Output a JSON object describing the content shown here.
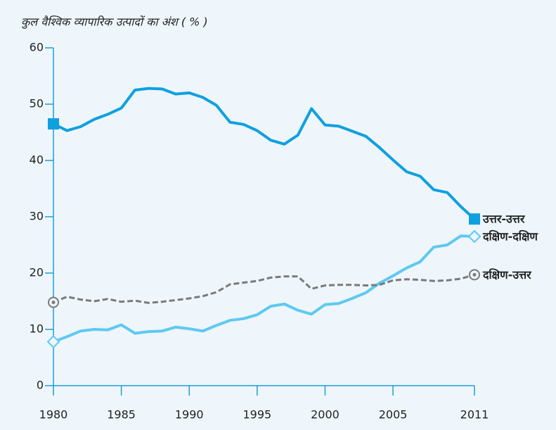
{
  "chart_data": {
    "type": "line",
    "title": "कुल वैश्विक व्यापारिक उत्पादों का अंश ( % )",
    "x": [
      1980,
      1981,
      1982,
      1983,
      1984,
      1985,
      1986,
      1987,
      1988,
      1989,
      1990,
      1991,
      1992,
      1993,
      1994,
      1995,
      1996,
      1997,
      1998,
      1999,
      2000,
      2001,
      2002,
      2003,
      2004,
      2005,
      2006,
      2007,
      2008,
      2009,
      2010,
      2011
    ],
    "series": [
      {
        "name": "उत्तर-उत्तर",
        "color": "#0fa0df",
        "marker": "square",
        "dashed": false,
        "values": [
          46.5,
          45.3,
          46.0,
          47.3,
          48.2,
          49.3,
          52.5,
          52.8,
          52.7,
          51.8,
          52.0,
          51.2,
          49.8,
          46.8,
          46.4,
          45.3,
          43.6,
          42.9,
          44.5,
          49.2,
          46.3,
          46.1,
          45.2,
          44.3,
          42.3,
          40.1,
          38.0,
          37.2,
          34.8,
          34.3,
          31.8,
          29.6
        ]
      },
      {
        "name": "दक्षिण-दक्षिण",
        "color": "#5ec9f2",
        "marker": "diamond",
        "dashed": false,
        "values": [
          7.8,
          8.7,
          9.7,
          10.0,
          9.9,
          10.8,
          9.3,
          9.6,
          9.7,
          10.4,
          10.1,
          9.7,
          10.7,
          11.6,
          11.9,
          12.6,
          14.1,
          14.5,
          13.4,
          12.7,
          14.4,
          14.6,
          15.5,
          16.5,
          18.2,
          19.5,
          20.9,
          22.0,
          24.6,
          25.0,
          26.6,
          26.5
        ]
      },
      {
        "name": "दक्षिण-उत्तर",
        "color": "#7a7a7a",
        "marker": "circle-dot",
        "dashed": true,
        "values": [
          14.8,
          15.8,
          15.3,
          15.0,
          15.4,
          14.9,
          15.1,
          14.7,
          14.9,
          15.2,
          15.5,
          15.9,
          16.6,
          18.0,
          18.3,
          18.6,
          19.2,
          19.4,
          19.4,
          17.2,
          17.8,
          17.9,
          17.9,
          17.8,
          17.9,
          18.7,
          18.9,
          18.8,
          18.6,
          18.7,
          19.0,
          19.7
        ]
      }
    ],
    "xlim": [
      1980,
      2011
    ],
    "xticks": [
      1980,
      1985,
      1990,
      1995,
      2000,
      2005,
      2011
    ],
    "ylim": [
      0,
      60
    ],
    "yticks": [
      0,
      10,
      20,
      30,
      40,
      50,
      60
    ],
    "axis_color": "#1a9fd9"
  }
}
